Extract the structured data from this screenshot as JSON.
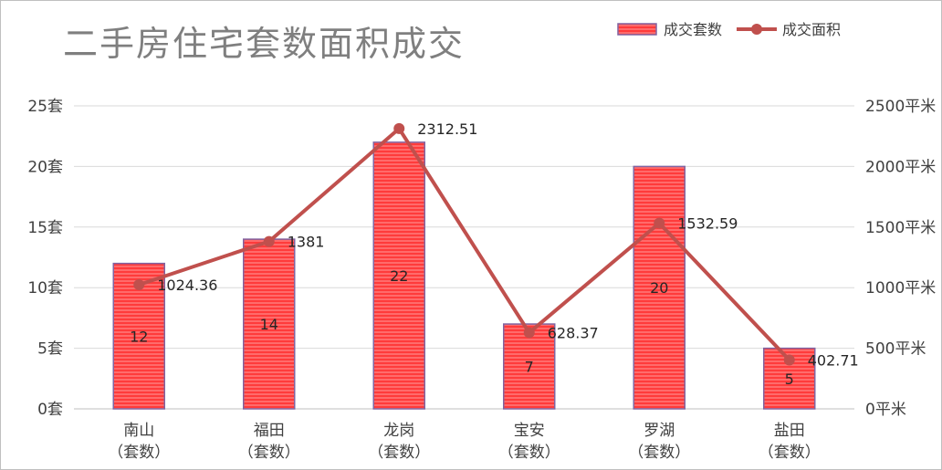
{
  "chart_data": {
    "type": "bar",
    "title": "二手房住宅套数面积成交",
    "categories": [
      [
        "南山",
        "（套数）"
      ],
      [
        "福田",
        "（套数）"
      ],
      [
        "龙岗",
        "（套数）"
      ],
      [
        "宝安",
        "（套数）"
      ],
      [
        "罗湖",
        "（套数）"
      ],
      [
        "盐田",
        "（套数）"
      ]
    ],
    "series": [
      {
        "name": "成交套数",
        "type": "bar",
        "axis": "left",
        "values": [
          12,
          14,
          22,
          7,
          20,
          5
        ],
        "color": "#ff3b3b"
      },
      {
        "name": "成交面积",
        "type": "line",
        "axis": "right",
        "values": [
          1024.36,
          1381,
          2312.51,
          628.37,
          1532.59,
          402.71
        ],
        "color": "#c0504d"
      }
    ],
    "bar_labels": [
      "12",
      "14",
      "22",
      "7",
      "20",
      "5"
    ],
    "line_labels": [
      "1024.36",
      "1381",
      "2312.51",
      "628.37",
      "1532.59",
      "402.71"
    ],
    "y_left": {
      "ticks": [
        "0套",
        "5套",
        "10套",
        "15套",
        "20套",
        "25套"
      ],
      "min": 0,
      "max": 25,
      "step": 5
    },
    "y_right": {
      "ticks": [
        "0平米",
        "500平米",
        "1000平米",
        "1500平米",
        "2000平米",
        "2500平米"
      ],
      "min": 0,
      "max": 2500,
      "step": 500
    },
    "grid": true,
    "legend": "top-right"
  }
}
